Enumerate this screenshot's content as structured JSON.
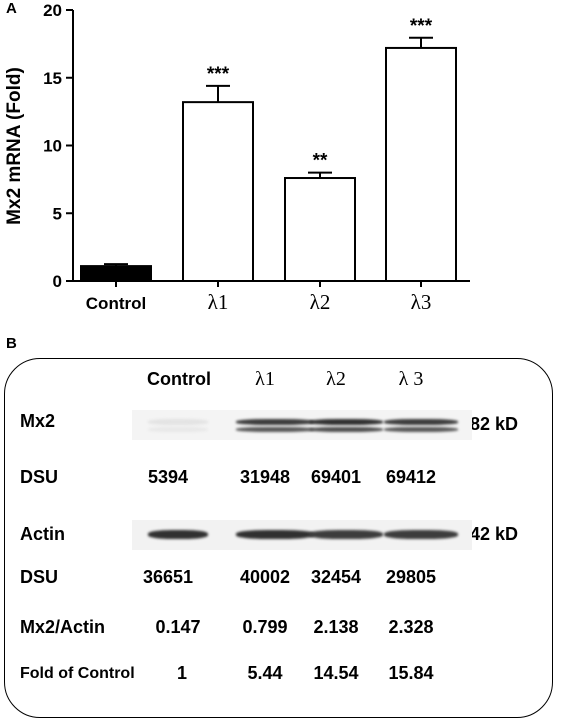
{
  "panel_a": {
    "label": "A",
    "chart_data": {
      "type": "bar",
      "categories": [
        "Control",
        "λ1",
        "λ2",
        "λ3"
      ],
      "values": [
        1.1,
        13.2,
        7.6,
        17.2
      ],
      "errors": [
        0.15,
        1.2,
        0.4,
        0.75
      ],
      "significance": [
        "",
        "***",
        "**",
        "***"
      ],
      "fills": [
        "#000000",
        "#ffffff",
        "#ffffff",
        "#ffffff"
      ],
      "title": "",
      "xlabel": "",
      "ylabel": "Mx2 mRNA (Fold)",
      "ylim": [
        0,
        20
      ],
      "yticks": [
        0,
        5,
        10,
        15,
        20
      ],
      "grid": false
    }
  },
  "panel_b": {
    "label": "B",
    "lanes": [
      "Control",
      "λ1",
      "λ2",
      "λ 3"
    ],
    "mx2": {
      "label": "Mx2",
      "size": "82 kD",
      "dsu_label": "DSU",
      "dsu": [
        "5394",
        "31948",
        "69401",
        "69412"
      ],
      "band_intensity": [
        0.12,
        0.85,
        0.9,
        0.85
      ]
    },
    "actin": {
      "label": "Actin",
      "size": "42 kD",
      "dsu_label": "DSU",
      "dsu": [
        "36651",
        "40002",
        "32454",
        "29805"
      ],
      "band_intensity": [
        0.9,
        0.9,
        0.85,
        0.85
      ]
    },
    "ratio": {
      "label": "Mx2/Actin",
      "values": [
        "0.147",
        "0.799",
        "2.138",
        "2.328"
      ]
    },
    "fold": {
      "label": "Fold of Control",
      "values": [
        "1",
        "5.44",
        "14.54",
        "15.84"
      ]
    }
  }
}
